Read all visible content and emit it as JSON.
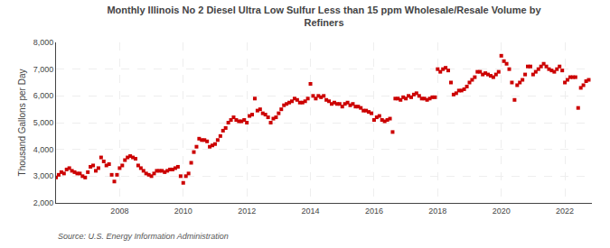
{
  "chart_data": {
    "type": "scatter",
    "title": "Monthly Illinois No 2 Diesel Ultra Low Sulfur Less than 15 ppm Wholesale/Resale Volume by\nRefiners",
    "ylabel": "Thousand Gallons per Day",
    "annotations": [
      "Source: U.S. Energy Information Administration"
    ],
    "color": "#cc0000",
    "marker": "square",
    "grid": true,
    "xlim": [
      2006.0,
      2022.85
    ],
    "xticks": [
      2008,
      2010,
      2012,
      2014,
      2016,
      2018,
      2020,
      2022
    ],
    "ylim": [
      2000,
      8000
    ],
    "yticks": [
      {
        "value": 2000,
        "label": "2,000"
      },
      {
        "value": 3000,
        "label": "3,000"
      },
      {
        "value": 4000,
        "label": "4,000"
      },
      {
        "value": 5000,
        "label": "5,000"
      },
      {
        "value": 6000,
        "label": "6,000"
      },
      {
        "value": 7000,
        "label": "7,000"
      },
      {
        "value": 8000,
        "label": "8,000"
      }
    ],
    "x": [
      2006.0,
      2006.083,
      2006.167,
      2006.25,
      2006.333,
      2006.417,
      2006.5,
      2006.583,
      2006.667,
      2006.75,
      2006.833,
      2006.917,
      2007.0,
      2007.083,
      2007.167,
      2007.25,
      2007.333,
      2007.417,
      2007.5,
      2007.583,
      2007.667,
      2007.75,
      2007.833,
      2007.917,
      2008.0,
      2008.083,
      2008.167,
      2008.25,
      2008.333,
      2008.417,
      2008.5,
      2008.583,
      2008.667,
      2008.75,
      2008.833,
      2008.917,
      2009.0,
      2009.083,
      2009.167,
      2009.25,
      2009.333,
      2009.417,
      2009.5,
      2009.583,
      2009.667,
      2009.75,
      2009.833,
      2009.917,
      2010.0,
      2010.083,
      2010.167,
      2010.25,
      2010.333,
      2010.417,
      2010.5,
      2010.583,
      2010.667,
      2010.75,
      2010.833,
      2010.917,
      2011.0,
      2011.083,
      2011.167,
      2011.25,
      2011.333,
      2011.417,
      2011.5,
      2011.583,
      2011.667,
      2011.75,
      2011.833,
      2011.917,
      2012.0,
      2012.083,
      2012.167,
      2012.25,
      2012.333,
      2012.417,
      2012.5,
      2012.583,
      2012.667,
      2012.75,
      2012.833,
      2012.917,
      2013.0,
      2013.083,
      2013.167,
      2013.25,
      2013.333,
      2013.417,
      2013.5,
      2013.583,
      2013.667,
      2013.75,
      2013.833,
      2013.917,
      2014.0,
      2014.083,
      2014.167,
      2014.25,
      2014.333,
      2014.417,
      2014.5,
      2014.583,
      2014.667,
      2014.75,
      2014.833,
      2014.917,
      2015.0,
      2015.083,
      2015.167,
      2015.25,
      2015.333,
      2015.417,
      2015.5,
      2015.583,
      2015.667,
      2015.75,
      2015.833,
      2015.917,
      2016.0,
      2016.083,
      2016.167,
      2016.25,
      2016.333,
      2016.417,
      2016.5,
      2016.583,
      2016.667,
      2016.75,
      2016.833,
      2016.917,
      2017.0,
      2017.083,
      2017.167,
      2017.25,
      2017.333,
      2017.417,
      2017.5,
      2017.583,
      2017.667,
      2017.75,
      2017.833,
      2017.917,
      2018.0,
      2018.083,
      2018.167,
      2018.25,
      2018.333,
      2018.417,
      2018.5,
      2018.583,
      2018.667,
      2018.75,
      2018.833,
      2018.917,
      2019.0,
      2019.083,
      2019.167,
      2019.25,
      2019.333,
      2019.417,
      2019.5,
      2019.583,
      2019.667,
      2019.75,
      2019.833,
      2019.917,
      2020.0,
      2020.083,
      2020.167,
      2020.25,
      2020.333,
      2020.417,
      2020.5,
      2020.583,
      2020.667,
      2020.75,
      2020.833,
      2020.917,
      2021.0,
      2021.083,
      2021.167,
      2021.25,
      2021.333,
      2021.417,
      2021.5,
      2021.583,
      2021.667,
      2021.75,
      2021.833,
      2021.917,
      2022.0,
      2022.083,
      2022.167,
      2022.25,
      2022.333,
      2022.417,
      2022.5,
      2022.583,
      2022.667,
      2022.75
    ],
    "values": [
      2950,
      3050,
      3150,
      3100,
      3250,
      3300,
      3200,
      3150,
      3100,
      3100,
      3000,
      2950,
      3150,
      3350,
      3400,
      3200,
      3300,
      3700,
      3550,
      3400,
      3450,
      3050,
      2800,
      3050,
      3300,
      3400,
      3600,
      3700,
      3750,
      3700,
      3650,
      3400,
      3300,
      3200,
      3100,
      3050,
      3000,
      3100,
      3200,
      3200,
      3200,
      3150,
      3200,
      3250,
      3250,
      3300,
      3350,
      3000,
      2750,
      3000,
      3100,
      3500,
      3900,
      4100,
      4400,
      4350,
      4350,
      4300,
      4100,
      4150,
      4200,
      4350,
      4500,
      4700,
      4800,
      5000,
      5100,
      5200,
      5100,
      5050,
      5050,
      5100,
      5000,
      5250,
      5300,
      5900,
      5450,
      5500,
      5350,
      5300,
      5200,
      5000,
      5150,
      5200,
      5350,
      5500,
      5650,
      5700,
      5750,
      5800,
      5900,
      5850,
      5750,
      5750,
      5800,
      5900,
      6450,
      6000,
      5900,
      6000,
      5950,
      6000,
      5850,
      5800,
      5700,
      5750,
      5700,
      5700,
      5600,
      5700,
      5750,
      5650,
      5700,
      5600,
      5600,
      5550,
      5450,
      5450,
      5400,
      5350,
      5100,
      5200,
      5250,
      5100,
      5050,
      5100,
      5150,
      4650,
      5900,
      5900,
      5850,
      5950,
      5900,
      6000,
      5950,
      6050,
      6100,
      6000,
      5900,
      5900,
      5850,
      5900,
      5950,
      5950,
      7000,
      6900,
      7000,
      7050,
      6950,
      6500,
      6050,
      6100,
      6200,
      6200,
      6250,
      6350,
      6500,
      6600,
      6700,
      6900,
      6900,
      6800,
      6850,
      6800,
      6750,
      6700,
      6800,
      6900,
      7500,
      7300,
      7200,
      7000,
      6500,
      5850,
      6400,
      6500,
      6600,
      6800,
      7100,
      7100,
      6800,
      6900,
      7000,
      7100,
      7200,
      7100,
      7000,
      6950,
      6900,
      7000,
      7100,
      6950,
      6500,
      6600,
      6700,
      6700,
      6700,
      5550,
      6300,
      6400,
      6550,
      6600
    ]
  }
}
